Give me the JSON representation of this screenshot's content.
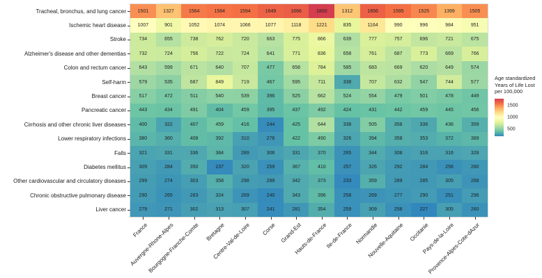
{
  "chart_data": {
    "type": "heatmap",
    "title": "",
    "xlabel": "",
    "ylabel": "",
    "columns": [
      "France",
      "Auvergne-Rhone-Alpes",
      "Bourgogne-Franche-Comte",
      "Bretagne",
      "Centre-Val-de-Loire",
      "Corse",
      "Grand-Est",
      "Hauts-de-France",
      "Ile-de-France",
      "Normandie",
      "Nouvelle-Aquitaine",
      "Occitanie",
      "Pays-de-la-Loire",
      "Provence-Alpes-Cote-dAzur"
    ],
    "rows": [
      "Tracheal, bronchus, and lung cancer",
      "Ischemic heart disease",
      "Stroke",
      "Alzheimer's disease and other dementias",
      "Colon and rectum cancer",
      "Self-harm",
      "Breast cancer",
      "Pancreatic cancer",
      "Cirrhosis and other chronic liver diseases",
      "Lower respiratory infections",
      "Falls",
      "Diabetes mellitus",
      "Other cardiovascular and circulatory diseases",
      "Chronic obstructive pulmonary disease",
      "Liver cancer"
    ],
    "values": [
      [
        1501,
        1327,
        1564,
        1584,
        1594,
        1649,
        1666,
        1800,
        1312,
        1656,
        1595,
        1525,
        1399,
        1505
      ],
      [
        1007,
        901,
        1052,
        1074,
        1066,
        1077,
        1118,
        1221,
        835,
        1164,
        990,
        996,
        984,
        951
      ],
      [
        734,
        655,
        738,
        762,
        720,
        663,
        775,
        866,
        639,
        777,
        757,
        696,
        721,
        675
      ],
      [
        732,
        724,
        756,
        722,
        724,
        641,
        771,
        836,
        658,
        761,
        687,
        773,
        669,
        766
      ],
      [
        643,
        599,
        671,
        640,
        707,
        477,
        658,
        784,
        585,
        683,
        669,
        620,
        649,
        574
      ],
      [
        579,
        535,
        687,
        849,
        719,
        467,
        595,
        711,
        338,
        707,
        632,
        547,
        744,
        577
      ],
      [
        517,
        472,
        511,
        540,
        539,
        396,
        525,
        662,
        524,
        554,
        479,
        501,
        478,
        449
      ],
      [
        443,
        434,
        491,
        404,
        459,
        395,
        437,
        492,
        424,
        431,
        442,
        459,
        445,
        456
      ],
      [
        400,
        322,
        407,
        459,
        416,
        244,
        425,
        644,
        338,
        505,
        358,
        336,
        436,
        359
      ],
      [
        380,
        360,
        408,
        392,
        310,
        276,
        422,
        490,
        326,
        394,
        358,
        353,
        372,
        389
      ],
      [
        321,
        331,
        336,
        384,
        289,
        306,
        331,
        370,
        265,
        344,
        308,
        316,
        316,
        328
      ],
      [
        309,
        284,
        350,
        237,
        320,
        259,
        367,
        410,
        257,
        326,
        292,
        284,
        256,
        280
      ],
      [
        299,
        274,
        303,
        358,
        298,
        289,
        342,
        373,
        233,
        359,
        289,
        285,
        305,
        268
      ],
      [
        290,
        265,
        283,
        324,
        269,
        240,
        343,
        396,
        258,
        269,
        277,
        290,
        251,
        296
      ],
      [
        279,
        271,
        302,
        313,
        307,
        241,
        281,
        354,
        259,
        309,
        258,
        227,
        305,
        260
      ]
    ],
    "value_domain": [
      227,
      1800
    ],
    "palette_low_to_high": [
      "#3288bd",
      "#66c2a5",
      "#abdda4",
      "#e6f598",
      "#ffffbf",
      "#fee08b",
      "#fdae61",
      "#f46d43",
      "#d53e4f"
    ],
    "legend": {
      "title_lines": [
        "Age standardized",
        "Years of Life Lost",
        "per 100,000"
      ],
      "tick_values": [
        1500,
        1000,
        500
      ],
      "tick_labels": [
        "1500",
        "1000",
        "500"
      ]
    },
    "grid": false,
    "legend_position": "right"
  }
}
